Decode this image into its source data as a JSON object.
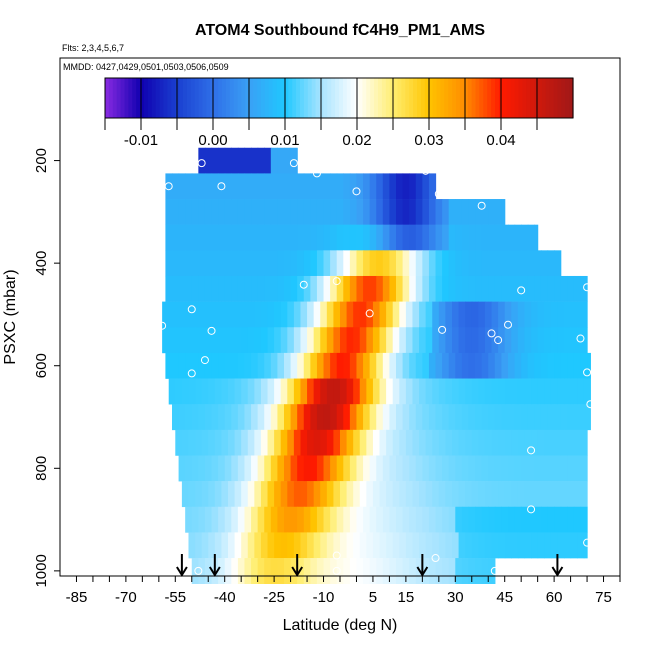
{
  "chart_data": {
    "type": "heatmap",
    "title": "ATOM4 Southbound fC4H9_PM1_AMS",
    "subtitle_flights": "Flts: 2,3,4,5,6,7",
    "subtitle_dates": "MMDD: 0427,0429,0501,0503,0506,0509",
    "xlabel": "Latitude (deg N)",
    "ylabel": "PSXC (mbar)",
    "xlim": [
      -90,
      80
    ],
    "ylim": [
      1010,
      0
    ],
    "x_tick_labels": [
      "-85",
      "-70",
      "-55",
      "-40",
      "-25",
      "-10",
      "5",
      "15",
      "30",
      "45",
      "60",
      "75"
    ],
    "x_ticks": [
      -85,
      -70,
      -55,
      -40,
      -25,
      -10,
      5,
      15,
      30,
      45,
      60,
      75
    ],
    "y_ticks": [
      200,
      400,
      600,
      800,
      1000
    ],
    "y_tick_labels": [
      "200",
      "400",
      "600",
      "800",
      "1000"
    ],
    "colorbar": {
      "range": [
        -0.015,
        0.05
      ],
      "ticks": [
        -0.01,
        0.0,
        0.01,
        0.02,
        0.03,
        0.04
      ],
      "tick_labels": [
        "-0.01",
        "0.00",
        "0.01",
        "0.02",
        "0.03",
        "0.04"
      ],
      "stops": [
        {
          "v": -0.015,
          "color": "#8a2be2"
        },
        {
          "v": -0.01,
          "color": "#1000b0"
        },
        {
          "v": -0.005,
          "color": "#1a3fd0"
        },
        {
          "v": 0.0,
          "color": "#2f6fe8"
        },
        {
          "v": 0.005,
          "color": "#3aa0f5"
        },
        {
          "v": 0.01,
          "color": "#1fc8ff"
        },
        {
          "v": 0.015,
          "color": "#a8e4ff"
        },
        {
          "v": 0.02,
          "color": "#ffffff"
        },
        {
          "v": 0.025,
          "color": "#ffee70"
        },
        {
          "v": 0.03,
          "color": "#ffc400"
        },
        {
          "v": 0.035,
          "color": "#ff8c00"
        },
        {
          "v": 0.04,
          "color": "#ff1a00"
        },
        {
          "v": 0.05,
          "color": "#a01818"
        }
      ]
    },
    "layers": [
      {
        "p": 200,
        "lat_min": -48,
        "lat_max": -18
      },
      {
        "p": 250,
        "lat_min": -58,
        "lat_max": 24
      },
      {
        "p": 300,
        "lat_min": -58,
        "lat_max": 45
      },
      {
        "p": 350,
        "lat_min": -58,
        "lat_max": 55
      },
      {
        "p": 400,
        "lat_min": -58,
        "lat_max": 62
      },
      {
        "p": 450,
        "lat_min": -58,
        "lat_max": 70
      },
      {
        "p": 500,
        "lat_min": -59,
        "lat_max": 70
      },
      {
        "p": 550,
        "lat_min": -59,
        "lat_max": 70
      },
      {
        "p": 600,
        "lat_min": -58,
        "lat_max": 71
      },
      {
        "p": 650,
        "lat_min": -57,
        "lat_max": 71
      },
      {
        "p": 700,
        "lat_min": -56,
        "lat_max": 71
      },
      {
        "p": 750,
        "lat_min": -55,
        "lat_max": 70
      },
      {
        "p": 800,
        "lat_min": -54,
        "lat_max": 70
      },
      {
        "p": 850,
        "lat_min": -53,
        "lat_max": 70
      },
      {
        "p": 900,
        "lat_min": -52,
        "lat_max": 70
      },
      {
        "p": 950,
        "lat_min": -51,
        "lat_max": 70
      },
      {
        "p": 1000,
        "lat_min": -50,
        "lat_max": 42
      }
    ],
    "obs_points": [
      {
        "lat": -47,
        "p": 205
      },
      {
        "lat": -19,
        "p": 205
      },
      {
        "lat": -12,
        "p": 225
      },
      {
        "lat": 21,
        "p": 220
      },
      {
        "lat": 0,
        "p": 260
      },
      {
        "lat": -57,
        "p": 250
      },
      {
        "lat": -41,
        "p": 250
      },
      {
        "lat": 25,
        "p": 265
      },
      {
        "lat": 38,
        "p": 288
      },
      {
        "lat": 57,
        "p": 330
      },
      {
        "lat": 58,
        "p": 338
      },
      {
        "lat": -6,
        "p": 435
      },
      {
        "lat": -16,
        "p": 442
      },
      {
        "lat": 50,
        "p": 453
      },
      {
        "lat": 70,
        "p": 447
      },
      {
        "lat": -50,
        "p": 490
      },
      {
        "lat": 4,
        "p": 498
      },
      {
        "lat": -59,
        "p": 522
      },
      {
        "lat": -44,
        "p": 532
      },
      {
        "lat": 26,
        "p": 530
      },
      {
        "lat": 46,
        "p": 520
      },
      {
        "lat": 41,
        "p": 537
      },
      {
        "lat": 43,
        "p": 550
      },
      {
        "lat": 68,
        "p": 547
      },
      {
        "lat": -46,
        "p": 589
      },
      {
        "lat": -50,
        "p": 615
      },
      {
        "lat": 70,
        "p": 613
      },
      {
        "lat": 71,
        "p": 675
      },
      {
        "lat": 53,
        "p": 765
      },
      {
        "lat": 53,
        "p": 880
      },
      {
        "lat": 70,
        "p": 945
      },
      {
        "lat": -6,
        "p": 970
      },
      {
        "lat": 24,
        "p": 975
      },
      {
        "lat": -48,
        "p": 1000
      },
      {
        "lat": -6,
        "p": 1000
      },
      {
        "lat": 42,
        "p": 1000
      }
    ],
    "arrows": [
      {
        "lat": -53
      },
      {
        "lat": -43
      },
      {
        "lat": -18
      },
      {
        "lat": 20
      },
      {
        "lat": 61
      }
    ]
  }
}
